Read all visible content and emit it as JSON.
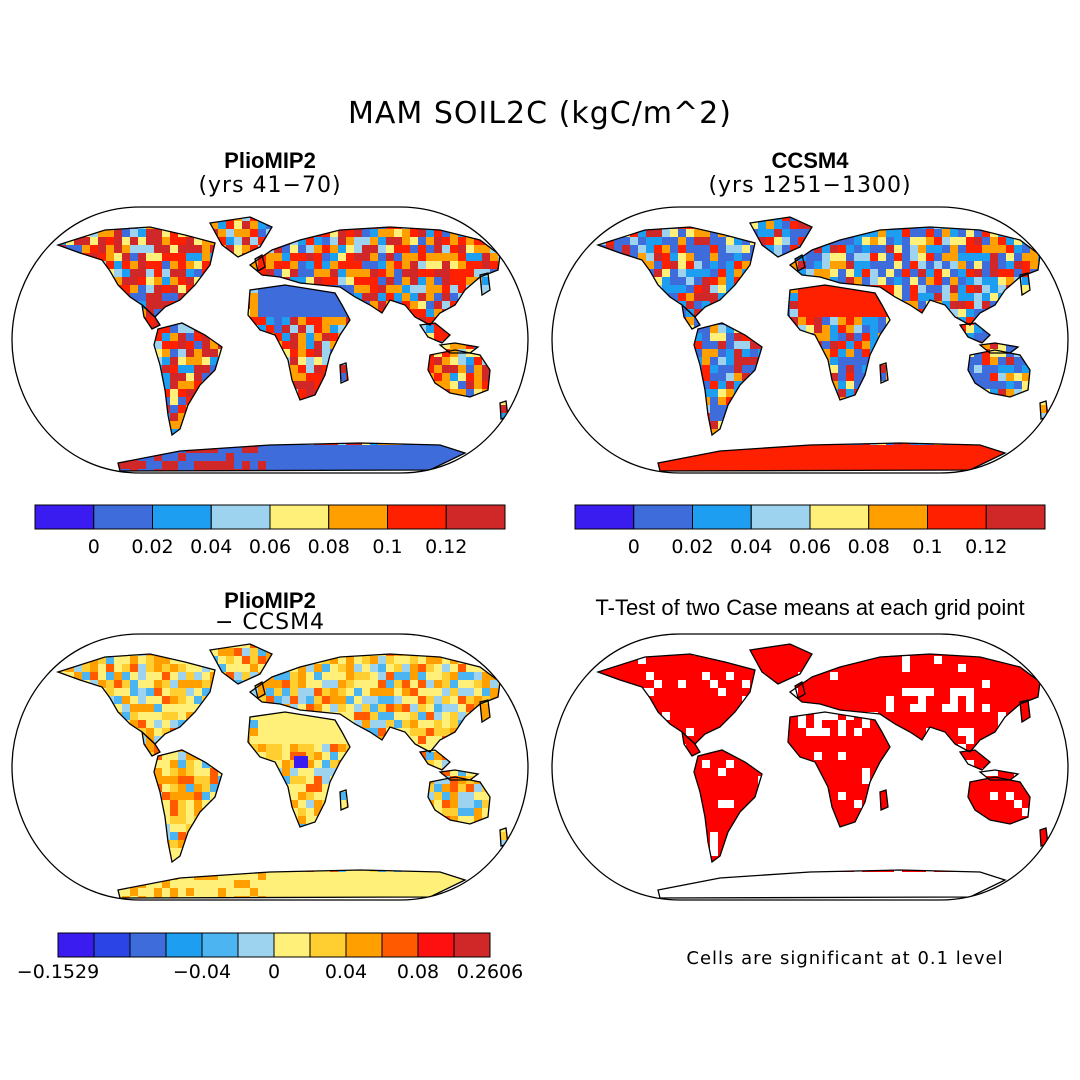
{
  "title": "MAM SOIL2C (kgC/m^2)",
  "panels": [
    {
      "id": "pliomip2",
      "title": "PlioMIP2",
      "subtitle": "(yrs 41−70)"
    },
    {
      "id": "ccsm4",
      "title": "CCSM4",
      "subtitle": "(yrs 1251−1300)"
    },
    {
      "id": "diff",
      "title": "PlioMIP2",
      "subtitle": "− CCSM4"
    },
    {
      "id": "ttest",
      "title": "T-Test of two Case means at each grid point",
      "subtitle": ""
    }
  ],
  "colorbars": {
    "abs": {
      "colors": [
        "#3b1cf0",
        "#3e6cdb",
        "#1e9ef0",
        "#9dd3ee",
        "#fff07a",
        "#ffa000",
        "#ff2000",
        "#d02828"
      ],
      "ticks": [
        "0",
        "0.02",
        "0.04",
        "0.06",
        "0.08",
        "0.1",
        "0.12"
      ]
    },
    "diff": {
      "colors": [
        "#3b1cf0",
        "#2a44e6",
        "#3e6cdb",
        "#1e9ef0",
        "#4cb4f0",
        "#9dd3ee",
        "#fff07a",
        "#ffce30",
        "#ffa000",
        "#ff5a00",
        "#ff1010",
        "#d02828"
      ],
      "ticks": [
        "−0.1529",
        "−0.04",
        "0",
        "0.04",
        "0.08",
        "0.2606"
      ]
    }
  },
  "note": "Cells are significant at 0.1 level",
  "map_colors": {
    "ocean": "#ffffff",
    "coast": "#000000",
    "significant": "#ff0000"
  }
}
